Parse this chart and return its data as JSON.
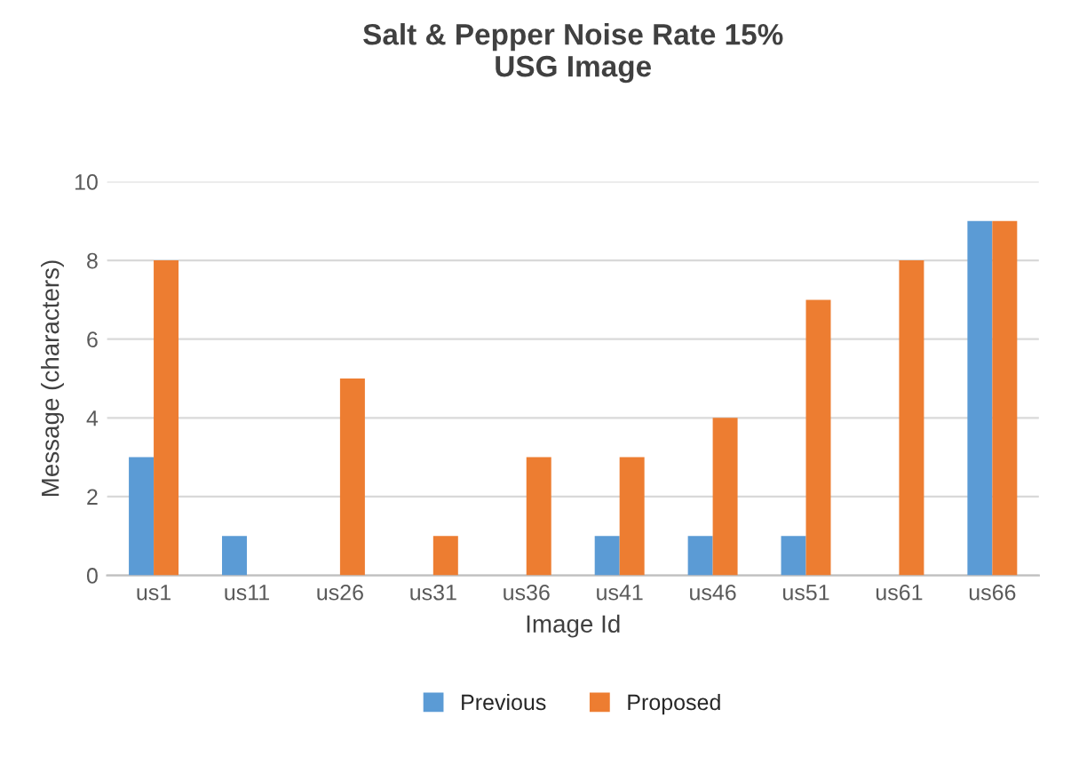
{
  "chart_data": {
    "type": "bar",
    "title": "Salt & Pepper Noise Rate 15%\nUSG Image",
    "xlabel": "Image Id",
    "ylabel": "Message (characters)",
    "categories": [
      "us1",
      "us11",
      "us26",
      "us31",
      "us36",
      "us41",
      "us46",
      "us51",
      "us61",
      "us66"
    ],
    "series": [
      {
        "name": "Previous",
        "color": "#5b9bd5",
        "values": [
          3,
          1,
          0,
          0,
          0,
          1,
          1,
          1,
          0,
          9
        ]
      },
      {
        "name": "Proposed",
        "color": "#ed7d31",
        "values": [
          8,
          0,
          5,
          1,
          3,
          3,
          4,
          7,
          8,
          9
        ]
      }
    ],
    "ylim": [
      0,
      10
    ],
    "yticks": [
      0,
      2,
      4,
      6,
      8,
      10
    ],
    "grid": "y",
    "legend": "bottom"
  }
}
